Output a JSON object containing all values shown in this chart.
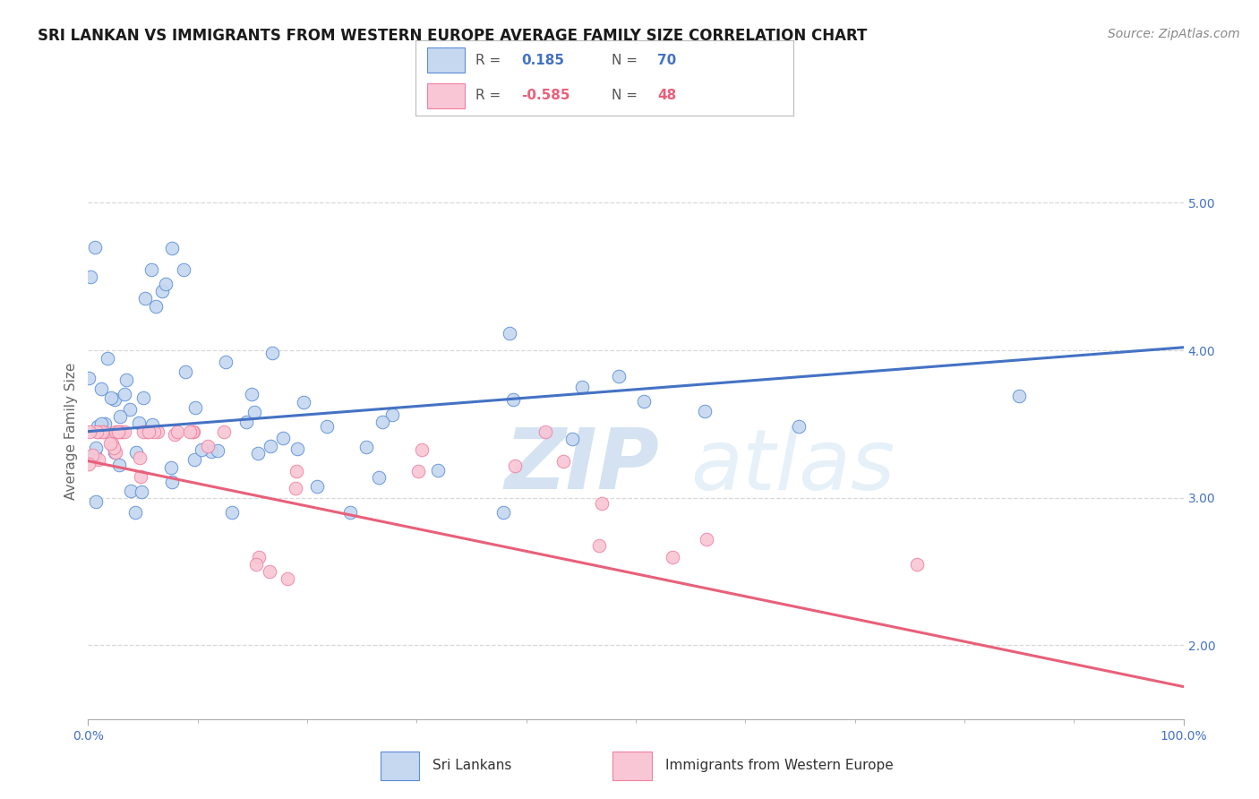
{
  "title": "SRI LANKAN VS IMMIGRANTS FROM WESTERN EUROPE AVERAGE FAMILY SIZE CORRELATION CHART",
  "source": "Source: ZipAtlas.com",
  "ylabel": "Average Family Size",
  "watermark_part1": "ZIP",
  "watermark_part2": "atlas",
  "xlim": [
    0,
    1
  ],
  "ylim": [
    1.5,
    5.4
  ],
  "yticks": [
    2.0,
    3.0,
    4.0,
    5.0
  ],
  "blue_R": 0.185,
  "blue_N": 70,
  "pink_R": -0.585,
  "pink_N": 48,
  "blue_fill": "#c5d8f0",
  "pink_fill": "#f9c6d5",
  "blue_edge": "#5b8dd9",
  "pink_edge": "#f080a0",
  "blue_line": "#4472c4",
  "pink_line": "#e8607a",
  "blue_label": "Sri Lankans",
  "pink_label": "Immigrants from Western Europe",
  "blue_trend_y0": 3.45,
  "blue_trend_y1": 4.02,
  "pink_trend_y0": 3.25,
  "pink_trend_y1": 1.72,
  "grid_color": "#d8d8d8",
  "bg_color": "#ffffff",
  "title_fontsize": 12,
  "source_fontsize": 10,
  "ylabel_fontsize": 11,
  "tick_fontsize": 10,
  "legend_fontsize": 11
}
